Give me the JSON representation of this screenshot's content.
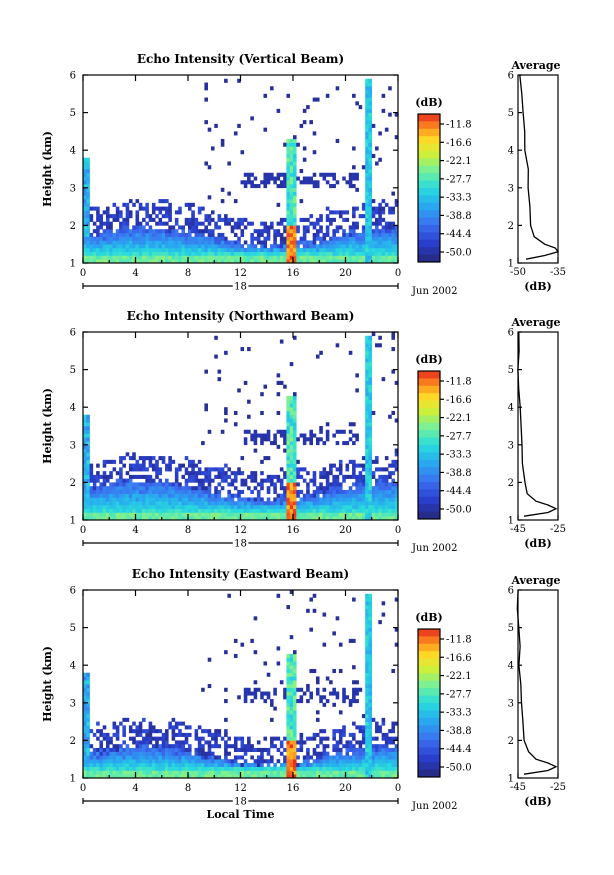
{
  "chart_data": [
    {
      "type": "heatmap",
      "title": "Echo Intensity (Vertical Beam)",
      "ylabel": "Height (km)",
      "ylim": [
        1,
        6
      ],
      "yticks": [
        "1",
        "2",
        "3",
        "4",
        "5",
        "6"
      ],
      "xlim": [
        0,
        24
      ],
      "xticks": [
        "0",
        "4",
        "8",
        "12",
        "16",
        "20",
        "0"
      ],
      "date_label": "18",
      "month_label": "Jun 2002",
      "colorbar": {
        "unit": "(dB)",
        "ticks": [
          "-11.8",
          "-16.6",
          "-22.1",
          "-27.7",
          "-33.3",
          "-38.8",
          "-44.4",
          "-50.0"
        ]
      },
      "profile": {
        "title": "Average",
        "xlabel": "(dB)",
        "xticks": [
          "-50",
          "-35"
        ],
        "xlim": [
          -50,
          -35
        ],
        "heights": [
          1.1,
          1.2,
          1.3,
          1.4,
          1.5,
          1.7,
          2.0,
          2.5,
          3.0,
          3.5,
          4.0,
          4.5,
          5.0,
          5.5,
          6.0
        ],
        "values": [
          -47,
          -40,
          -35,
          -36,
          -40,
          -44,
          -45,
          -46,
          -46,
          -46.5,
          -47,
          -47.5,
          -48,
          -48.5,
          -49
        ]
      },
      "features": {
        "rain_band_hours": [
          15.5,
          16.2
        ],
        "second_band_hours": [
          21.4,
          22.0
        ],
        "boundary_layer_top_km": 1.6,
        "peak_db": -11.8
      }
    },
    {
      "type": "heatmap",
      "title": "Echo Intensity (Northward Beam)",
      "ylabel": "Height (km)",
      "ylim": [
        1,
        6
      ],
      "yticks": [
        "1",
        "2",
        "3",
        "4",
        "5",
        "6"
      ],
      "xlim": [
        0,
        24
      ],
      "xticks": [
        "0",
        "4",
        "8",
        "12",
        "16",
        "20",
        "0"
      ],
      "date_label": "18",
      "month_label": "Jun 2002",
      "colorbar": {
        "unit": "(dB)",
        "ticks": [
          "-11.8",
          "-16.6",
          "-22.1",
          "-27.7",
          "-33.3",
          "-38.8",
          "-44.4",
          "-50.0"
        ]
      },
      "profile": {
        "title": "Average",
        "xlabel": "(dB)",
        "xticks": [
          "-45",
          "-25"
        ],
        "xlim": [
          -45,
          -25
        ],
        "heights": [
          1.1,
          1.2,
          1.3,
          1.4,
          1.5,
          1.7,
          2.0,
          2.5,
          3.0,
          3.5,
          4.0,
          4.5,
          5.0,
          5.5,
          6.0
        ],
        "values": [
          -42,
          -30,
          -26,
          -30,
          -36,
          -40,
          -42,
          -43,
          -43.5,
          -44,
          -44,
          -44.5,
          -44.5,
          -45,
          -45
        ]
      },
      "features": {
        "rain_band_hours": [
          15.5,
          16.2
        ],
        "second_band_hours": [
          21.4,
          22.0
        ],
        "boundary_layer_top_km": 1.7,
        "peak_db": -11.8
      }
    },
    {
      "type": "heatmap",
      "title": "Echo Intensity (Eastward Beam)",
      "ylabel": "Height (km)",
      "xlabel": "Local Time",
      "ylim": [
        1,
        6
      ],
      "yticks": [
        "1",
        "2",
        "3",
        "4",
        "5",
        "6"
      ],
      "xlim": [
        0,
        24
      ],
      "xticks": [
        "0",
        "4",
        "8",
        "12",
        "16",
        "20",
        "0"
      ],
      "date_label": "18",
      "month_label": "Jun 2002",
      "colorbar": {
        "unit": "(dB)",
        "ticks": [
          "-11.8",
          "-16.6",
          "-22.1",
          "-27.7",
          "-33.3",
          "-38.8",
          "-44.4",
          "-50.0"
        ]
      },
      "profile": {
        "title": "Average",
        "xlabel": "(dB)",
        "xticks": [
          "-45",
          "-25"
        ],
        "xlim": [
          -45,
          -25
        ],
        "heights": [
          1.1,
          1.2,
          1.3,
          1.4,
          1.5,
          1.7,
          2.0,
          2.5,
          3.0,
          3.5,
          4.0,
          4.5,
          5.0,
          5.5,
          6.0
        ],
        "values": [
          -42,
          -30,
          -26,
          -30,
          -36,
          -40,
          -42,
          -43,
          -43.5,
          -44,
          -44,
          -44.5,
          -44.5,
          -45,
          -45
        ]
      },
      "features": {
        "rain_band_hours": [
          15.5,
          16.2
        ],
        "second_band_hours": [
          21.4,
          22.0
        ],
        "boundary_layer_top_km": 1.5,
        "peak_db": -11.8
      }
    }
  ]
}
